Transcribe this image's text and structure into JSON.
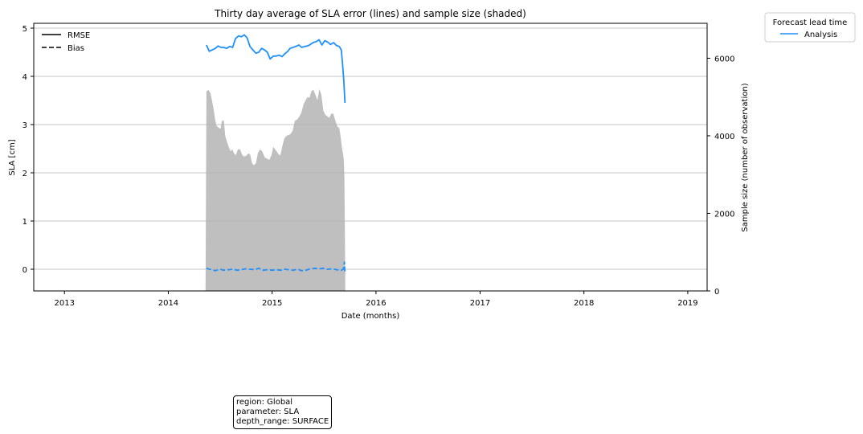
{
  "chart_data": {
    "type": "line",
    "title": "Thirty day average of SLA error (lines) and sample size (shaded)",
    "xlabel": "Date (months)",
    "ylabel": "SLA [cm]",
    "y2label": "Sample size (number of observation)",
    "xlim": [
      "2012-09-15",
      "2019-03-10"
    ],
    "ylim": [
      -0.45,
      5.1
    ],
    "y2lim": [
      0,
      6900
    ],
    "xticks": [
      "2013",
      "2014",
      "2015",
      "2016",
      "2017",
      "2018",
      "2019"
    ],
    "yticks": [
      "0",
      "1",
      "2",
      "3",
      "4",
      "5"
    ],
    "y2ticks": [
      "0",
      "2000",
      "4000",
      "6000"
    ],
    "grid": "horizontal",
    "style_legend": {
      "placement": "upper-left",
      "entries": [
        {
          "label": "RMSE",
          "style": "solid"
        },
        {
          "label": "Bias",
          "style": "dashed"
        }
      ]
    },
    "lead_legend": {
      "title": "Forecast lead time",
      "placement": "outside-top-right",
      "entries": [
        {
          "label": "Analysis",
          "color": "#1e90ff"
        }
      ]
    },
    "series": [
      {
        "name": "RMSE",
        "legend_label": "Analysis",
        "color": "#1e90ff",
        "style": "solid",
        "x": [
          "2014-05-15",
          "2014-05-25",
          "2014-06-05",
          "2014-06-15",
          "2014-06-25",
          "2014-07-05",
          "2014-07-15",
          "2014-07-25",
          "2014-08-05",
          "2014-08-15",
          "2014-08-25",
          "2014-09-05",
          "2014-09-15",
          "2014-09-25",
          "2014-10-05",
          "2014-10-15",
          "2014-10-25",
          "2014-11-05",
          "2014-11-15",
          "2014-11-25",
          "2014-12-05",
          "2014-12-15",
          "2014-12-25",
          "2015-01-05",
          "2015-01-15",
          "2015-01-25",
          "2015-02-05",
          "2015-02-15",
          "2015-02-25",
          "2015-03-05",
          "2015-03-15",
          "2015-03-25",
          "2015-04-05",
          "2015-04-15",
          "2015-04-25",
          "2015-05-05",
          "2015-05-15",
          "2015-05-25",
          "2015-06-05",
          "2015-06-15",
          "2015-06-25",
          "2015-07-05",
          "2015-07-12",
          "2015-07-18",
          "2015-07-25",
          "2015-08-05",
          "2015-08-15",
          "2015-08-25",
          "2015-09-01",
          "2015-09-05",
          "2015-09-10",
          "2015-09-14"
        ],
        "values": [
          4.65,
          4.52,
          4.55,
          4.58,
          4.63,
          4.6,
          4.6,
          4.58,
          4.62,
          4.6,
          4.78,
          4.84,
          4.82,
          4.86,
          4.8,
          4.62,
          4.55,
          4.48,
          4.5,
          4.58,
          4.55,
          4.5,
          4.36,
          4.42,
          4.42,
          4.44,
          4.41,
          4.47,
          4.52,
          4.58,
          4.6,
          4.62,
          4.65,
          4.6,
          4.62,
          4.63,
          4.66,
          4.7,
          4.72,
          4.76,
          4.65,
          4.74,
          4.72,
          4.7,
          4.66,
          4.7,
          4.64,
          4.62,
          4.55,
          4.3,
          3.9,
          3.45
        ]
      },
      {
        "name": "Bias",
        "color": "#1e90ff",
        "style": "dashed",
        "x": [
          "2014-05-15",
          "2014-06-01",
          "2014-06-15",
          "2014-07-01",
          "2014-07-15",
          "2014-08-01",
          "2014-08-15",
          "2014-09-01",
          "2014-09-15",
          "2014-10-01",
          "2014-10-15",
          "2014-11-01",
          "2014-11-15",
          "2014-12-01",
          "2014-12-15",
          "2015-01-01",
          "2015-01-15",
          "2015-02-01",
          "2015-02-15",
          "2015-03-01",
          "2015-03-15",
          "2015-04-01",
          "2015-04-15",
          "2015-05-01",
          "2015-05-15",
          "2015-06-01",
          "2015-06-15",
          "2015-07-01",
          "2015-07-15",
          "2015-08-01",
          "2015-08-15",
          "2015-09-01",
          "2015-09-08",
          "2015-09-12",
          "2015-09-14"
        ],
        "values": [
          0.02,
          -0.01,
          -0.03,
          0.0,
          -0.02,
          -0.01,
          0.0,
          -0.02,
          -0.01,
          0.01,
          0.0,
          -0.01,
          0.02,
          -0.02,
          -0.01,
          -0.02,
          -0.01,
          -0.02,
          0.0,
          -0.01,
          -0.02,
          0.0,
          -0.03,
          -0.02,
          0.01,
          0.02,
          0.01,
          0.02,
          0.0,
          0.01,
          -0.01,
          -0.02,
          0.0,
          0.15,
          -0.1
        ]
      },
      {
        "name": "Sample size",
        "axis": "right",
        "type": "area",
        "color": "#bfbfbf",
        "x": [
          "2014-05-12",
          "2014-05-15",
          "2014-05-22",
          "2014-05-29",
          "2014-06-05",
          "2014-06-10",
          "2014-06-15",
          "2014-06-20",
          "2014-06-28",
          "2014-07-04",
          "2014-07-08",
          "2014-07-15",
          "2014-07-20",
          "2014-07-26",
          "2014-08-02",
          "2014-08-08",
          "2014-08-14",
          "2014-08-20",
          "2014-08-26",
          "2014-09-03",
          "2014-09-10",
          "2014-09-17",
          "2014-09-24",
          "2014-10-02",
          "2014-10-10",
          "2014-10-16",
          "2014-10-22",
          "2014-10-28",
          "2014-11-05",
          "2014-11-12",
          "2014-11-20",
          "2014-11-28",
          "2014-12-06",
          "2014-12-14",
          "2014-12-22",
          "2014-12-30",
          "2015-01-05",
          "2015-01-12",
          "2015-01-18",
          "2015-01-24",
          "2015-01-30",
          "2015-02-05",
          "2015-02-12",
          "2015-02-20",
          "2015-02-28",
          "2015-03-06",
          "2015-03-14",
          "2015-03-22",
          "2015-03-30",
          "2015-04-07",
          "2015-04-14",
          "2015-04-21",
          "2015-04-28",
          "2015-05-05",
          "2015-05-12",
          "2015-05-19",
          "2015-05-26",
          "2015-06-02",
          "2015-06-09",
          "2015-06-16",
          "2015-06-23",
          "2015-06-30",
          "2015-07-07",
          "2015-07-14",
          "2015-07-21",
          "2015-07-28",
          "2015-08-04",
          "2015-08-11",
          "2015-08-18",
          "2015-08-25",
          "2015-08-30",
          "2015-09-03",
          "2015-09-07",
          "2015-09-10",
          "2015-09-12",
          "2015-09-14",
          "2015-09-15"
        ],
        "values": [
          0,
          5150,
          5180,
          5100,
          4860,
          4650,
          4400,
          4250,
          4200,
          4180,
          4380,
          4400,
          4000,
          3850,
          3700,
          3600,
          3650,
          3550,
          3500,
          3650,
          3650,
          3520,
          3460,
          3490,
          3550,
          3510,
          3310,
          3240,
          3290,
          3560,
          3650,
          3590,
          3440,
          3410,
          3380,
          3510,
          3720,
          3640,
          3590,
          3520,
          3500,
          3710,
          3920,
          4000,
          4020,
          4040,
          4130,
          4390,
          4420,
          4500,
          4600,
          4800,
          4910,
          5000,
          4980,
          5150,
          5190,
          5060,
          4920,
          5210,
          5060,
          4650,
          4540,
          4500,
          4460,
          4570,
          4570,
          4400,
          4240,
          4200,
          3970,
          3710,
          3550,
          3380,
          2920,
          1330,
          0
        ]
      }
    ],
    "fill_profile_note": "",
    "annotation": [
      "region: Global",
      "parameter: SLA",
      "depth_range: SURFACE"
    ]
  }
}
